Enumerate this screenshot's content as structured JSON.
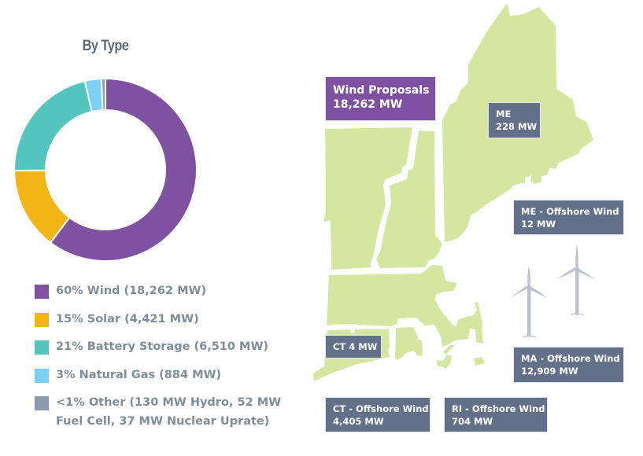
{
  "chart_data": {
    "type": "pie",
    "subtype": "donut",
    "title": "By Type",
    "unit": "MW",
    "categories": [
      "Wind",
      "Solar",
      "Battery Storage",
      "Natural Gas",
      "Other"
    ],
    "values": [
      18262,
      4421,
      6510,
      884,
      219
    ],
    "percent_labels": [
      "60%",
      "15%",
      "21%",
      "3%",
      "<1%"
    ],
    "colors": [
      "#7e52a0",
      "#f2b515",
      "#52c6be",
      "#7ecff5",
      "#8a9cab"
    ],
    "other_breakdown": [
      {
        "name": "Hydro",
        "value": 130
      },
      {
        "name": "Fuel Cell",
        "value": 52
      },
      {
        "name": "Nuclear Uprate",
        "value": 37
      }
    ],
    "legend_position": "bottom",
    "start_angle_deg": 0,
    "direction": "clockwise"
  },
  "title": "By Type",
  "legend": [
    {
      "label": "60% Wind (18,262 MW)",
      "color": "#7e52a0"
    },
    {
      "label": "15% Solar (4,421 MW)",
      "color": "#f2b515"
    },
    {
      "label": "21% Battery Storage (6,510 MW)",
      "color": "#52c6be"
    },
    {
      "label": "3% Natural Gas (884 MW)",
      "color": "#7ecff5"
    },
    {
      "label_line1": "<1% Other (130 MW Hydro, 52 MW",
      "label_line2": "Fuel Cell, 37 MW Nuclear Uprate)",
      "color": "#8a9cab"
    }
  ],
  "map": {
    "land_color": "#d4e6a0",
    "turbine_color": "#bcc1cf",
    "wind_proposals": {
      "line1": "Wind Proposals",
      "line2": "18,262 MW",
      "color": "#7e52a0"
    },
    "labels": {
      "me": {
        "line1": "ME",
        "line2": "228 MW"
      },
      "me_offshore": {
        "line1": "ME - Offshore Wind",
        "line2": "12 MW"
      },
      "ma_offshore": {
        "line1": "MA - Offshore Wind",
        "line2": "12,909 MW"
      },
      "ct": {
        "line1": "CT 4 MW"
      },
      "ct_offshore": {
        "line1": "CT - Offshore Wind",
        "line2": "4,405 MW"
      },
      "ri_offshore": {
        "line1": "RI - Offshore Wind",
        "line2": "704 MW"
      }
    },
    "label_color": "#627089"
  }
}
